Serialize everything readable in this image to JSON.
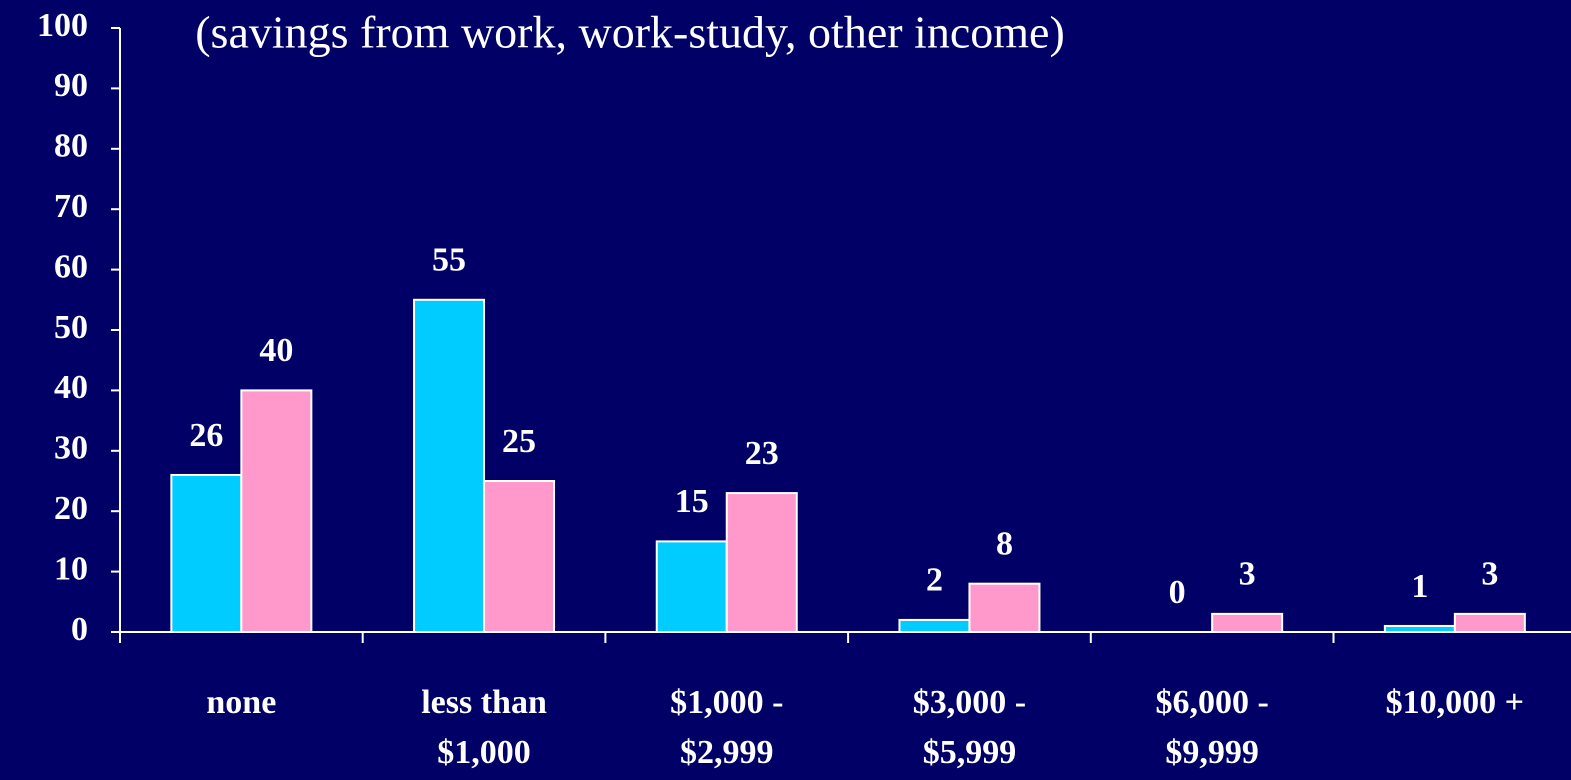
{
  "chart_data": {
    "type": "bar",
    "title": "(savings from work, work-study, other income)",
    "categories": [
      "none",
      "less than\n$1,000",
      "$1,000 -\n$2,999",
      "$3,000 -\n$5,999",
      "$6,000 -\n$9,999",
      "$10,000 +"
    ],
    "series": [
      {
        "color": "#00ccff",
        "values": [
          26,
          55,
          15,
          2,
          0,
          1
        ]
      },
      {
        "color": "#ff99cc",
        "values": [
          40,
          25,
          23,
          8,
          3,
          3
        ]
      }
    ],
    "ylim": [
      0,
      100
    ],
    "yticks": [
      0,
      10,
      20,
      30,
      40,
      50,
      60,
      70,
      80,
      90,
      100
    ]
  }
}
